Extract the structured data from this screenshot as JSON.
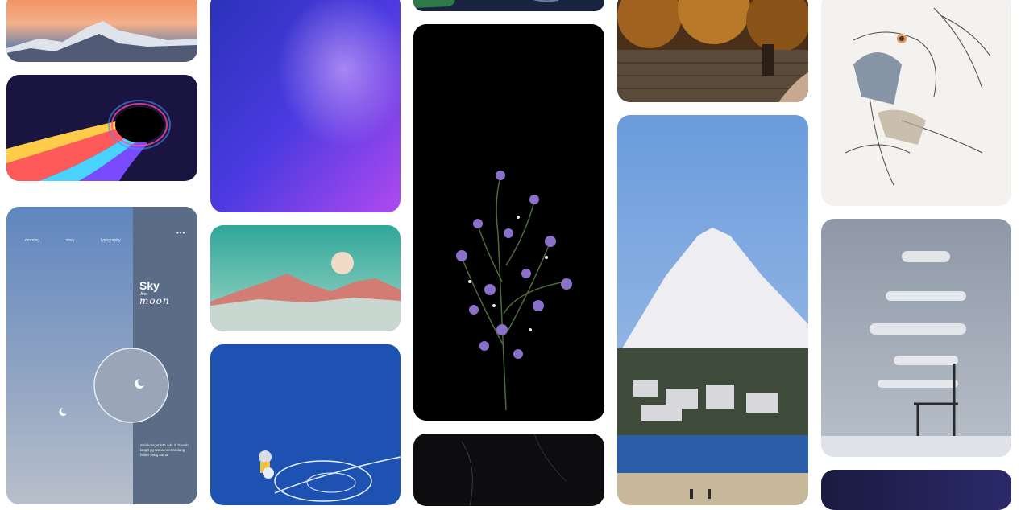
{
  "feed": {
    "cards": [
      {
        "id": "snowy-mountain-sunset"
      },
      {
        "id": "rainbow-black-hole"
      },
      {
        "id": "sky-and-moon-poster"
      },
      {
        "id": "purple-galaxy"
      },
      {
        "id": "pastel-desert-moon"
      },
      {
        "id": "blue-sky-figure"
      },
      {
        "id": "green-top-cut"
      },
      {
        "id": "purple-wildflowers-black"
      },
      {
        "id": "dark-texture"
      },
      {
        "id": "autumn-stone-wall"
      },
      {
        "id": "mount-fuji-coast"
      },
      {
        "id": "anime-hand-sketch"
      },
      {
        "id": "figure-on-chair-painting"
      },
      {
        "id": "dark-night-sky-bottom"
      }
    ]
  },
  "poster": {
    "nav": [
      "morning",
      "story",
      "typography"
    ],
    "menu": "•••",
    "title": "Sky",
    "subtitle": "And",
    "script": "moon",
    "body": "Selalu ingat kita ada di bawah langit yg sama memandang bulan yang sama"
  },
  "colors": {
    "page_background": "#ffffff",
    "poster_blue": "#6f8fba",
    "poster_panel": "#5a6c86"
  }
}
